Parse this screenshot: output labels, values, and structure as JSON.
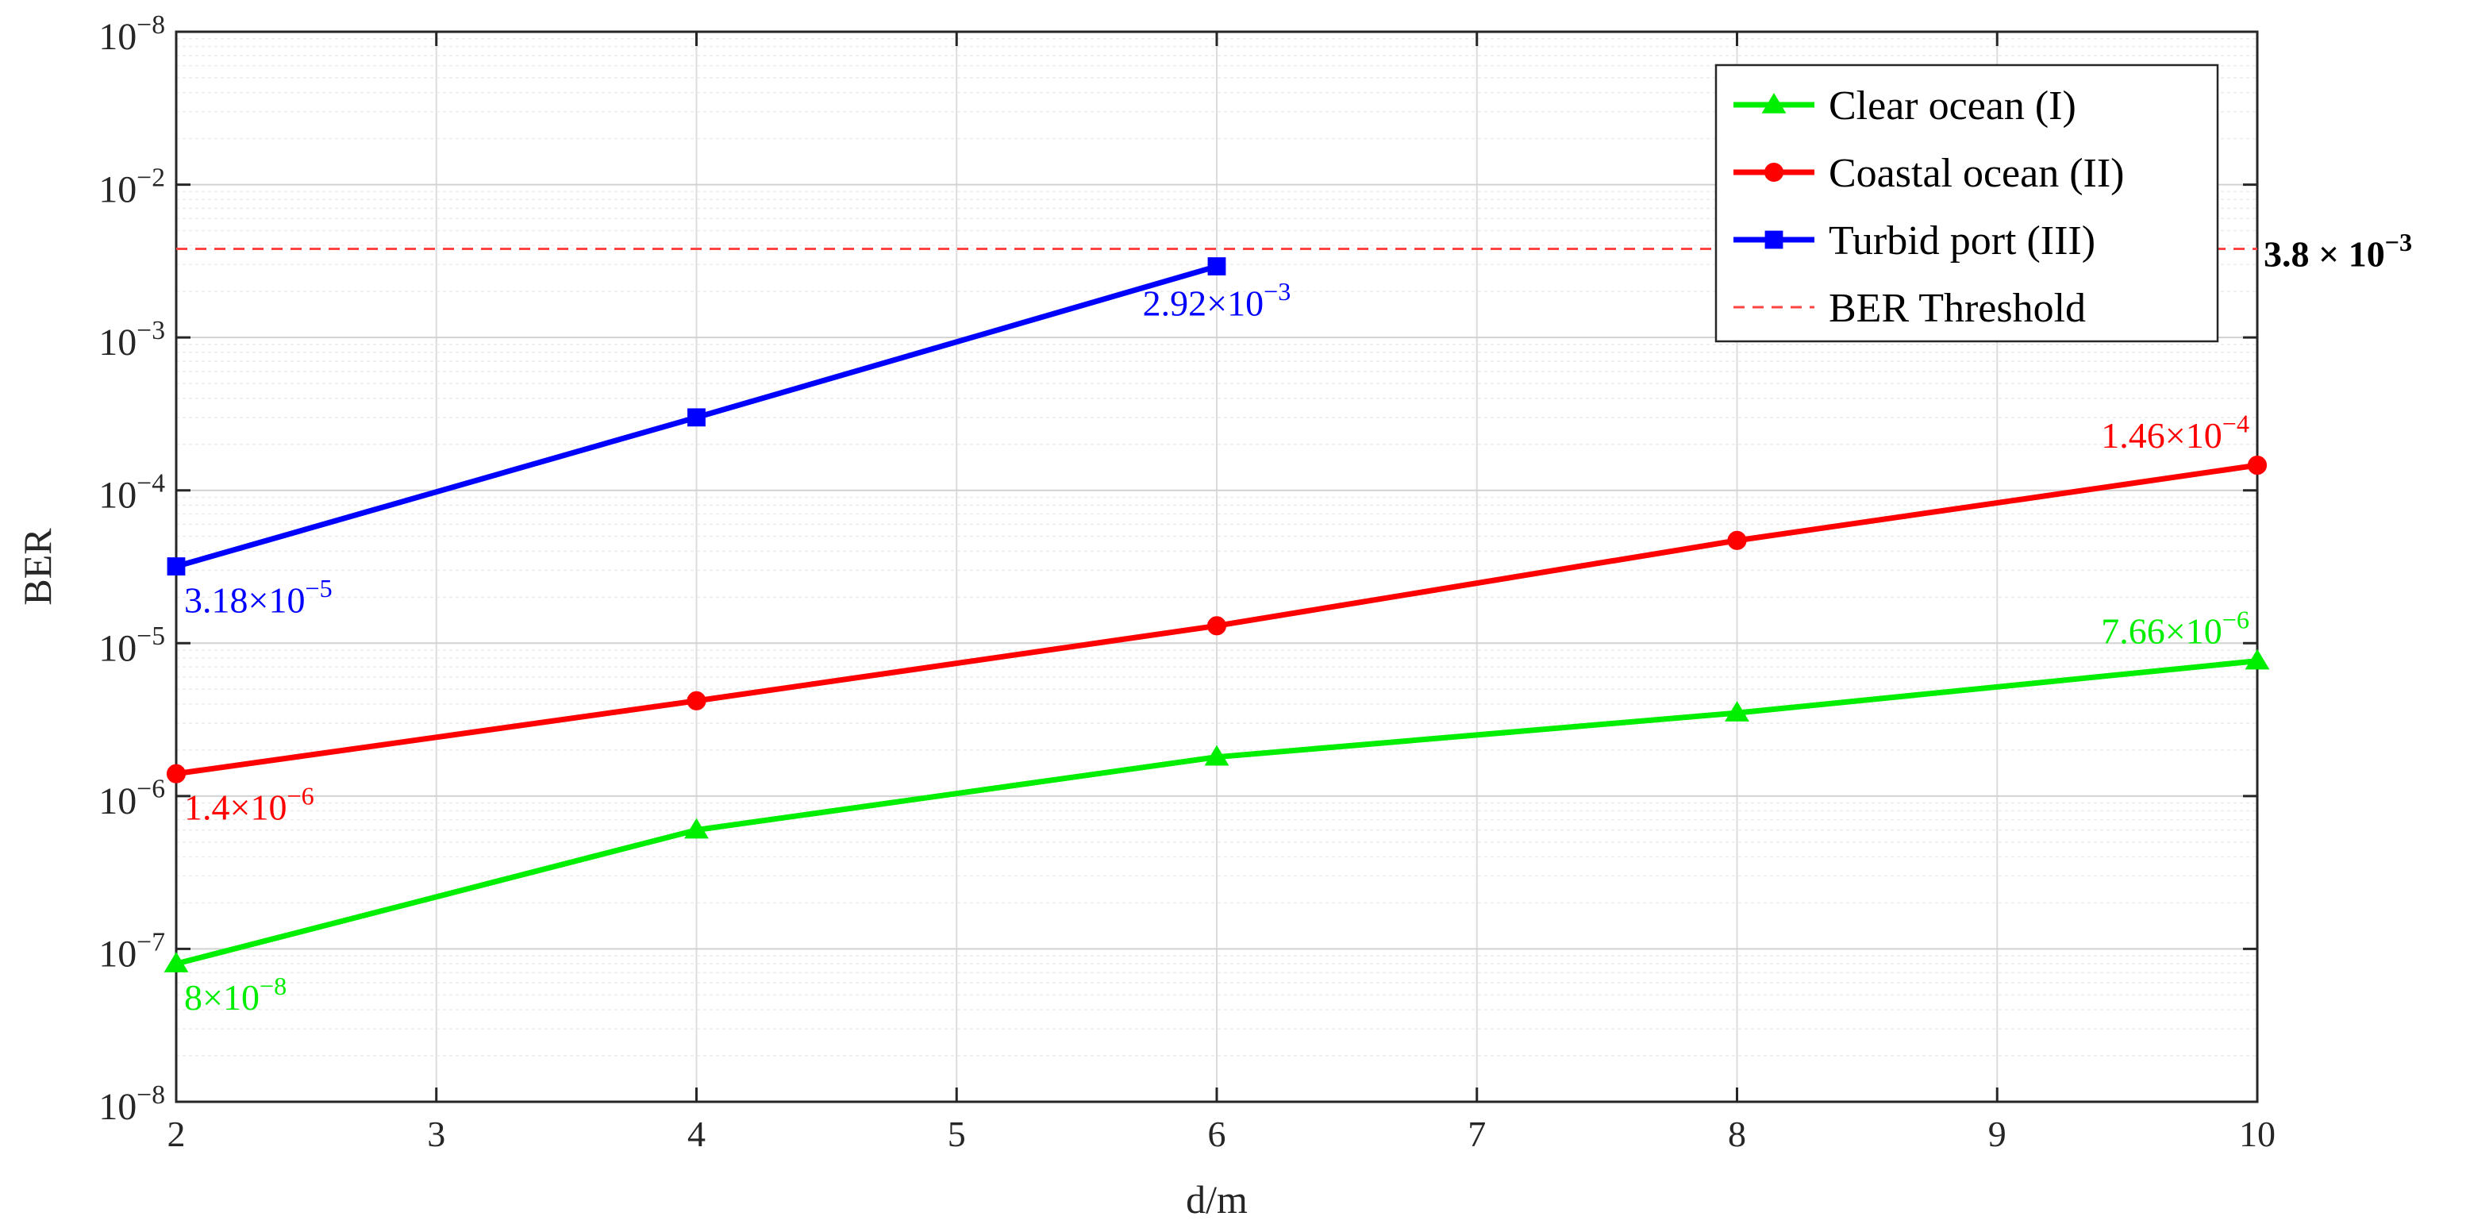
{
  "chart_data": {
    "type": "line",
    "title": "",
    "xlabel": "d/m",
    "ylabel": "BER",
    "xlim": [
      2,
      10
    ],
    "ylim_exponent": [
      -8,
      -2
    ],
    "y_scale": "log",
    "grid": true,
    "legend_position": "top-right",
    "x_ticks": [
      "2",
      "3",
      "4",
      "5",
      "6",
      "7",
      "8",
      "9",
      "10"
    ],
    "y_ticks": [
      {
        "base": "10",
        "exp": "−8"
      },
      {
        "base": "10",
        "exp": "−7"
      },
      {
        "base": "10",
        "exp": "−6"
      },
      {
        "base": "10",
        "exp": "−5"
      },
      {
        "base": "10",
        "exp": "−4"
      },
      {
        "base": "10",
        "exp": "−3"
      },
      {
        "base": "10",
        "exp": "−2"
      },
      {
        "base": "10",
        "exp": "−8"
      }
    ],
    "series": [
      {
        "name": "Clear ocean (I)",
        "color": "#00ee00",
        "marker": "triangle",
        "x": [
          2,
          4,
          6,
          8,
          10
        ],
        "y": [
          8e-08,
          6e-07,
          1.8e-06,
          3.5e-06,
          7.66e-06
        ]
      },
      {
        "name": "Coastal ocean (II)",
        "color": "#ff0000",
        "marker": "circle",
        "x": [
          2,
          4,
          6,
          8,
          10
        ],
        "y": [
          1.4e-06,
          4.2e-06,
          1.3e-05,
          4.7e-05,
          0.000146
        ]
      },
      {
        "name": "Turbid port (III)",
        "color": "#0000ff",
        "marker": "square",
        "x": [
          2,
          4,
          6
        ],
        "y": [
          3.18e-05,
          0.0003,
          0.00292
        ]
      }
    ],
    "threshold": {
      "name": "BER Threshold",
      "value": 0.0038,
      "color": "#ff4444",
      "label_main": "3.8 × 10",
      "label_exp": "−3"
    },
    "annotations": [
      {
        "main": "8×10",
        "exp": "−8",
        "color": "#00ee00",
        "x": 2,
        "y": 8e-08,
        "pos": "below-right"
      },
      {
        "main": "7.66×10",
        "exp": "−6",
        "color": "#00ee00",
        "x": 10,
        "y": 7.66e-06,
        "pos": "above-left"
      },
      {
        "main": "1.4×10",
        "exp": "−6",
        "color": "#ff0000",
        "x": 2,
        "y": 1.4e-06,
        "pos": "below-right"
      },
      {
        "main": "1.46×10",
        "exp": "−4",
        "color": "#ff0000",
        "x": 10,
        "y": 0.000146,
        "pos": "above-left"
      },
      {
        "main": "3.18×10",
        "exp": "−5",
        "color": "#0000ff",
        "x": 2,
        "y": 3.18e-05,
        "pos": "below-right"
      },
      {
        "main": "2.92×10",
        "exp": "−3",
        "color": "#0000ff",
        "x": 6,
        "y": 0.00292,
        "pos": "below-center"
      }
    ]
  }
}
